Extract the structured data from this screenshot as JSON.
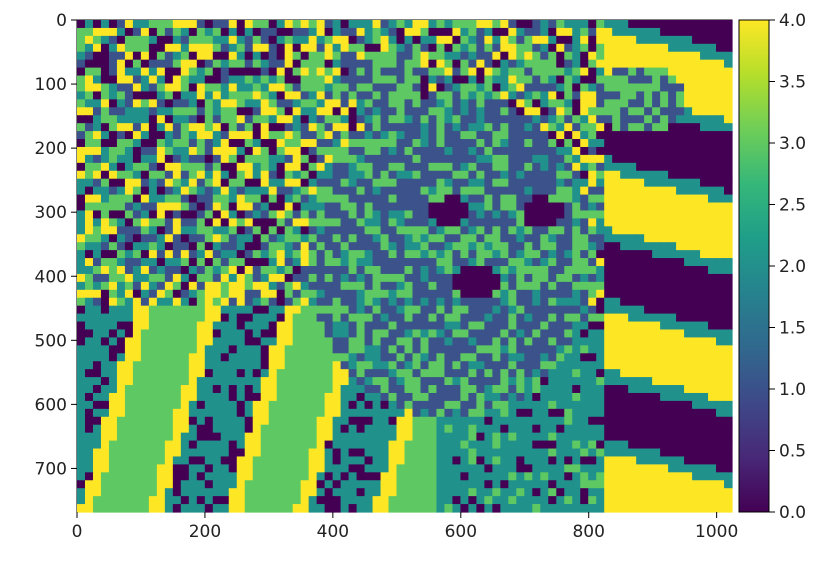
{
  "chart_data": {
    "type": "heatmap",
    "description_of_content": "",
    "x_ticks": [
      "0",
      "200",
      "400",
      "600",
      "800",
      "1000"
    ],
    "x_tick_values": [
      0,
      200,
      400,
      600,
      800,
      1000
    ],
    "y_ticks": [
      "0",
      "100",
      "200",
      "300",
      "400",
      "500",
      "600",
      "700"
    ],
    "y_tick_values": [
      0,
      100,
      200,
      300,
      400,
      500,
      600,
      700
    ],
    "xlim": [
      0,
      1024
    ],
    "ylim": [
      768,
      0
    ],
    "colorbar": {
      "colormap": "viridis",
      "vmin": 0.0,
      "vmax": 4.0,
      "levels": [
        0,
        1,
        2,
        3,
        4
      ],
      "ticks": [
        "0.0",
        "0.5",
        "1.0",
        "1.5",
        "2.0",
        "2.5",
        "3.0",
        "3.5",
        "4.0"
      ],
      "tick_values": [
        0.0,
        0.5,
        1.0,
        1.5,
        2.0,
        2.5,
        3.0,
        3.5,
        4.0
      ]
    },
    "level_colors": [
      "#440154",
      "#3b528b",
      "#21918c",
      "#5ec962",
      "#fde725"
    ],
    "title": "",
    "xlabel": "",
    "ylabel": ""
  }
}
